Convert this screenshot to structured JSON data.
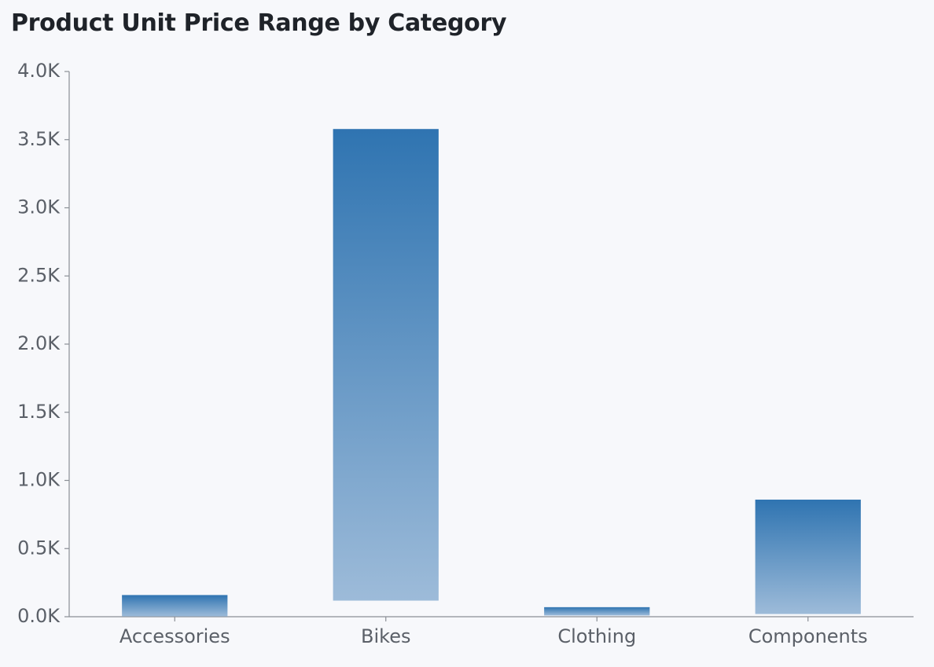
{
  "chart_data": {
    "type": "bar",
    "title": "Product Unit Price Range by Category",
    "xlabel": "",
    "ylabel": "",
    "categories": [
      "Accessories",
      "Bikes",
      "Clothing",
      "Components"
    ],
    "range_low": [
      2.29,
      118,
      8.99,
      20
    ],
    "range_high": [
      159,
      3578,
      70,
      859
    ],
    "ylim": [
      0,
      4000
    ],
    "yticks": [
      "0.0K",
      "0.5K",
      "1.0K",
      "1.5K",
      "2.0K",
      "2.5K",
      "3.0K",
      "3.5K",
      "4.0K"
    ],
    "ytick_values": [
      0,
      500,
      1000,
      1500,
      2000,
      2500,
      3000,
      3500,
      4000
    ],
    "grid": false,
    "legend": "none",
    "colors": {
      "bar_top": "#2f74b1",
      "bar_bottom": "#9dbbd9",
      "axis": "#8a8f96",
      "text": "#5b6068",
      "title": "#1f2329",
      "background": "#f7f8fb"
    }
  }
}
